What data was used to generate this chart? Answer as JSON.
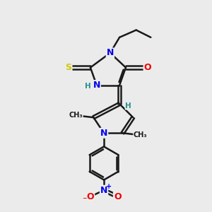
{
  "bg_color": "#ebebeb",
  "bond_color": "#1a1a1a",
  "bond_width": 1.8,
  "atom_colors": {
    "N": "#0000ee",
    "O": "#ee0000",
    "S": "#cccc00",
    "C": "#1a1a1a",
    "H": "#2a9090"
  },
  "font_size_atom": 9,
  "font_size_small": 7.5,
  "font_size_me": 7
}
